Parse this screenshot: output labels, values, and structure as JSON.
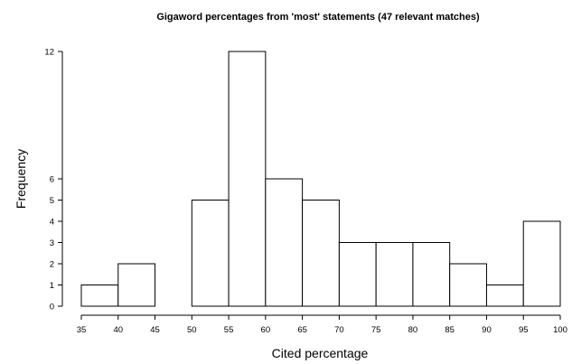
{
  "chart_data": {
    "type": "bar",
    "title": "Gigaword percentages from 'most' statements (47 relevant matches)",
    "xlabel": "Cited percentage",
    "ylabel": "Frequency",
    "bins": [
      {
        "start": 35,
        "end": 40,
        "count": 1
      },
      {
        "start": 40,
        "end": 45,
        "count": 2
      },
      {
        "start": 45,
        "end": 50,
        "count": 0
      },
      {
        "start": 50,
        "end": 55,
        "count": 5
      },
      {
        "start": 55,
        "end": 60,
        "count": 12
      },
      {
        "start": 60,
        "end": 65,
        "count": 6
      },
      {
        "start": 65,
        "end": 70,
        "count": 5
      },
      {
        "start": 70,
        "end": 75,
        "count": 3
      },
      {
        "start": 75,
        "end": 80,
        "count": 3
      },
      {
        "start": 80,
        "end": 85,
        "count": 3
      },
      {
        "start": 85,
        "end": 90,
        "count": 2
      },
      {
        "start": 90,
        "end": 95,
        "count": 1
      },
      {
        "start": 95,
        "end": 100,
        "count": 4
      }
    ],
    "x_ticks": [
      "35",
      "40",
      "45",
      "50",
      "55",
      "60",
      "65",
      "70",
      "75",
      "80",
      "85",
      "90",
      "95",
      "100"
    ],
    "y_ticks": [
      "0",
      "1",
      "2",
      "3",
      "4",
      "5",
      "6",
      "12"
    ],
    "xlim": [
      35,
      100
    ],
    "ylim": [
      0,
      12
    ],
    "grid": false,
    "legend": "none"
  }
}
